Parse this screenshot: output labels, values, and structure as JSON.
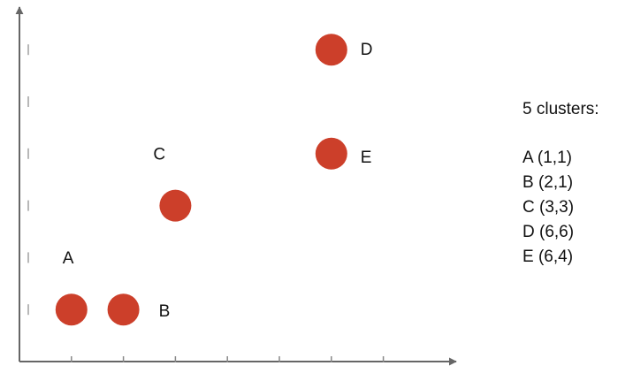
{
  "chart_data": {
    "type": "scatter",
    "title": "",
    "xlabel": "",
    "ylabel": "",
    "xlim": [
      0,
      8.5
    ],
    "ylim": [
      0,
      6.8
    ],
    "x_ticks": [
      1,
      2,
      3,
      4,
      5,
      6,
      7
    ],
    "y_ticks": [
      1,
      2,
      3,
      4,
      5,
      6
    ],
    "point_color": "#cc3f2a",
    "points": [
      {
        "label": "A",
        "x": 1,
        "y": 1
      },
      {
        "label": "B",
        "x": 2,
        "y": 1
      },
      {
        "label": "C",
        "x": 3,
        "y": 3
      },
      {
        "label": "D",
        "x": 6,
        "y": 6
      },
      {
        "label": "E",
        "x": 6,
        "y": 4
      }
    ]
  },
  "legend": {
    "title": "5 clusters:",
    "items": [
      {
        "text": "A (1,1)"
      },
      {
        "text": "B (2,1)"
      },
      {
        "text": "C (3,3)"
      },
      {
        "text": "D (6,6)"
      },
      {
        "text": "E (6,4)"
      }
    ]
  }
}
